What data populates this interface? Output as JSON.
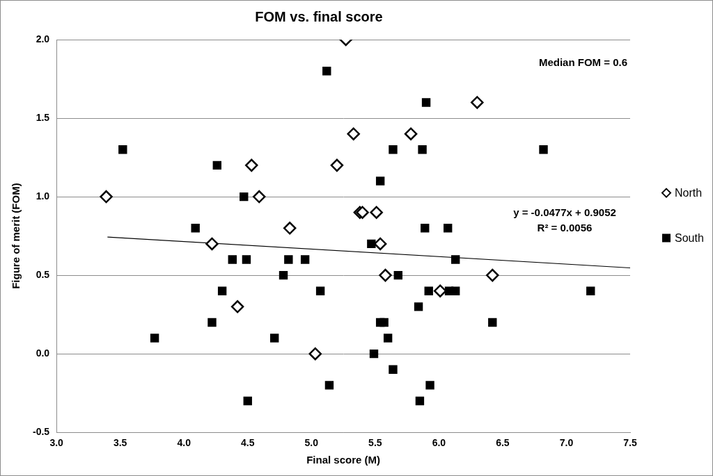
{
  "chart_data": {
    "type": "scatter",
    "title": "FOM vs. final score",
    "x_label": "Final score (M)",
    "y_label": "Figure of merit (FOM)",
    "xlim": [
      3,
      7.5
    ],
    "xticks": [
      {
        "value": 3,
        "label": "3.0"
      },
      {
        "value": 3.5,
        "label": "3.5"
      },
      {
        "value": 4,
        "label": "4.0"
      },
      {
        "value": 4.5,
        "label": "4.5"
      },
      {
        "value": 5,
        "label": "5.0"
      },
      {
        "value": 5.5,
        "label": "5.5"
      },
      {
        "value": 6,
        "label": "6.0"
      },
      {
        "value": 6.5,
        "label": "6.5"
      },
      {
        "value": 7,
        "label": "7.0"
      },
      {
        "value": 7.5,
        "label": "7.5"
      }
    ],
    "ylim": [
      -0.5,
      2
    ],
    "yticks": [
      -0.5,
      {
        "value": 0,
        "label": "0.0"
      },
      0.5,
      {
        "value": 1,
        "label": "1.0"
      },
      1.5,
      {
        "value": 2,
        "label": "2.0"
      }
    ],
    "grid": "y",
    "legend": "right",
    "series": [
      {
        "name": "North",
        "color": "#000000",
        "marker": "open-diamond",
        "x": [
          3.39,
          4.22,
          4.42,
          4.53,
          4.59,
          4.83,
          5.03,
          5.2,
          5.27,
          5.33,
          5.38,
          5.4,
          5.51,
          5.54,
          5.58,
          5.78,
          6.01,
          6.3,
          6.42
        ],
        "values": [
          1.0,
          0.7,
          0.3,
          1.2,
          1.0,
          0.8,
          0.0,
          1.2,
          2.0,
          1.4,
          0.9,
          0.9,
          0.9,
          0.7,
          0.5,
          1.4,
          0.4,
          1.6,
          0.5
        ]
      },
      {
        "name": "South",
        "color": "#000000",
        "marker": "square",
        "x": [
          3.52,
          3.77,
          4.09,
          4.22,
          4.26,
          4.3,
          4.38,
          4.47,
          4.49,
          4.5,
          4.71,
          4.78,
          4.82,
          4.95,
          5.07,
          5.12,
          5.14,
          5.47,
          5.49,
          5.54,
          5.54,
          5.57,
          5.6,
          5.64,
          5.64,
          5.68,
          5.84,
          5.85,
          5.87,
          5.89,
          5.9,
          5.92,
          5.93,
          6.07,
          6.08,
          6.13,
          6.13,
          6.42,
          6.82,
          7.19
        ],
        "values": [
          1.3,
          0.1,
          0.8,
          0.2,
          1.2,
          0.4,
          0.6,
          1.0,
          0.6,
          -0.3,
          0.1,
          0.5,
          0.6,
          0.6,
          0.4,
          1.8,
          -0.2,
          0.7,
          0.0,
          0.2,
          1.1,
          0.2,
          0.1,
          1.3,
          -0.1,
          0.5,
          0.3,
          -0.3,
          1.3,
          0.8,
          1.6,
          0.4,
          -0.2,
          0.8,
          0.4,
          0.6,
          0.4,
          0.2,
          1.3,
          0.4
        ]
      }
    ],
    "trendline": {
      "x": [
        3.4,
        7.5
      ],
      "values": [
        0.743,
        0.547
      ],
      "color": "#000000",
      "line_style": "solid"
    },
    "annotations": [
      "Median FOM = 0.6",
      "y = -0.0477x + 0.9052",
      "R² = 0.0056"
    ]
  }
}
